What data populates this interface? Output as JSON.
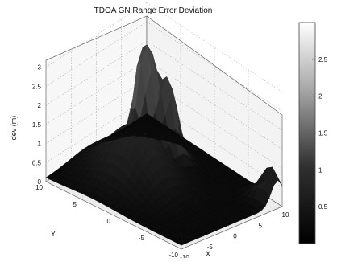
{
  "chart_data": {
    "type": "surface3d",
    "title": "TDOA GN Range Error Deviation",
    "xlabel": "X",
    "ylabel": "Y",
    "zlabel": "dev (m)",
    "xlim": [
      -10,
      10
    ],
    "ylim": [
      -10,
      10
    ],
    "zlim": [
      0,
      3
    ],
    "x_ticks": [
      "-10",
      "-5",
      "0",
      "5",
      "10"
    ],
    "y_ticks": [
      "10",
      "5",
      "0",
      "-5",
      "-10"
    ],
    "z_ticks": [
      "0",
      "0.5",
      "1",
      "1.5",
      "2",
      "2.5",
      "3"
    ],
    "grid": true,
    "colormap": "gray",
    "colorbar": {
      "range": [
        0,
        3
      ],
      "ticks": [
        "0.5",
        "1",
        "1.5",
        "2",
        "2.5"
      ]
    },
    "surface_profile": {
      "x": [
        -10,
        -5,
        0,
        5,
        10
      ],
      "y": [
        10,
        5,
        0,
        -5,
        -10
      ],
      "approx_peaks": [
        {
          "x": -2,
          "y": 3,
          "z": 1.5
        },
        {
          "x": 3,
          "y": 5,
          "z": 3.0
        },
        {
          "x": 5,
          "y": 3,
          "z": 2.0
        },
        {
          "x": 9,
          "y": -9,
          "z": 1.0
        }
      ],
      "base_level": 0.1
    }
  }
}
